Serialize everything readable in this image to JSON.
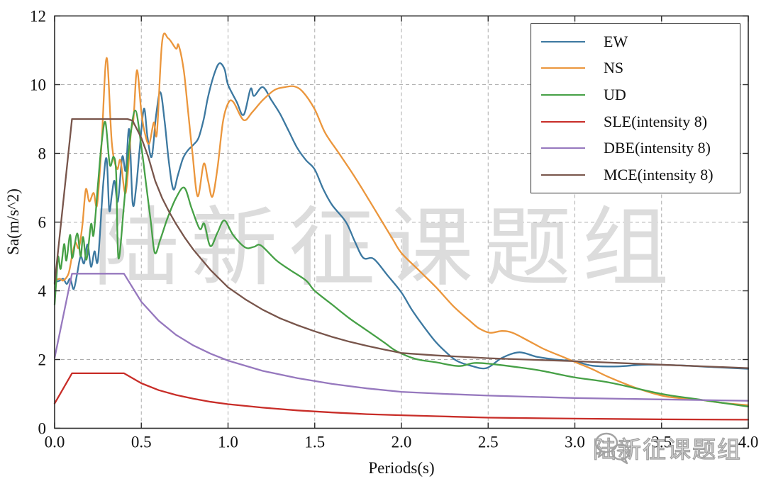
{
  "watermarks": {
    "center_text": "陆新征课题组",
    "bottom_right_text": "陆新征课题组"
  },
  "chart_data": {
    "type": "line",
    "title": "",
    "xlabel": "Periods(s)",
    "ylabel": "Sa(m/s^2)",
    "xlim": [
      0,
      4
    ],
    "ylim": [
      0,
      12
    ],
    "grid": "dashed",
    "legend_position": "upper right",
    "x_ticks": {
      "values": [
        0,
        0.5,
        1,
        1.5,
        2,
        2.5,
        3,
        3.5,
        4
      ],
      "labels": [
        "0.0",
        "0.5",
        "1.0",
        "1.5",
        "2.0",
        "2.5",
        "3.0",
        "3.5",
        "4.0"
      ]
    },
    "y_ticks": {
      "values": [
        0,
        2,
        4,
        6,
        8,
        10,
        12
      ],
      "labels": [
        "0",
        "2",
        "4",
        "6",
        "8",
        "10",
        "12"
      ]
    },
    "series": [
      {
        "name": "EW",
        "color": "#3c78a0",
        "smooth": true,
        "points": [
          [
            0,
            4.25
          ],
          [
            0.03,
            4.3
          ],
          [
            0.05,
            4.35
          ],
          [
            0.07,
            4.2
          ],
          [
            0.09,
            4.35
          ],
          [
            0.11,
            4.05
          ],
          [
            0.13,
            4.5
          ],
          [
            0.15,
            5.0
          ],
          [
            0.17,
            4.8
          ],
          [
            0.19,
            5.35
          ],
          [
            0.21,
            4.7
          ],
          [
            0.23,
            5.15
          ],
          [
            0.25,
            4.9
          ],
          [
            0.28,
            7.1
          ],
          [
            0.3,
            7.84
          ],
          [
            0.315,
            6.35
          ],
          [
            0.33,
            6.8
          ],
          [
            0.345,
            7.2
          ],
          [
            0.365,
            6.6
          ],
          [
            0.39,
            7.9
          ],
          [
            0.41,
            7.5
          ],
          [
            0.43,
            8.7
          ],
          [
            0.45,
            6.55
          ],
          [
            0.47,
            7.0
          ],
          [
            0.49,
            8.1
          ],
          [
            0.515,
            9.3
          ],
          [
            0.535,
            8.5
          ],
          [
            0.56,
            7.9
          ],
          [
            0.585,
            9.1
          ],
          [
            0.61,
            9.78
          ],
          [
            0.635,
            8.9
          ],
          [
            0.66,
            7.7
          ],
          [
            0.685,
            6.95
          ],
          [
            0.71,
            7.35
          ],
          [
            0.74,
            7.85
          ],
          [
            0.77,
            8.1
          ],
          [
            0.8,
            8.25
          ],
          [
            0.83,
            8.45
          ],
          [
            0.86,
            9.0
          ],
          [
            0.885,
            9.65
          ],
          [
            0.92,
            10.3
          ],
          [
            0.95,
            10.62
          ],
          [
            0.98,
            10.45
          ],
          [
            1.0,
            10.0
          ],
          [
            1.05,
            9.5
          ],
          [
            1.09,
            9.12
          ],
          [
            1.13,
            9.88
          ],
          [
            1.15,
            9.67
          ],
          [
            1.2,
            9.93
          ],
          [
            1.25,
            9.55
          ],
          [
            1.3,
            9.15
          ],
          [
            1.35,
            8.65
          ],
          [
            1.4,
            8.15
          ],
          [
            1.45,
            7.8
          ],
          [
            1.5,
            7.53
          ],
          [
            1.55,
            6.95
          ],
          [
            1.6,
            6.5
          ],
          [
            1.68,
            6.0
          ],
          [
            1.73,
            5.45
          ],
          [
            1.78,
            4.96
          ],
          [
            1.84,
            4.93
          ],
          [
            1.92,
            4.45
          ],
          [
            2.0,
            3.95
          ],
          [
            2.06,
            3.45
          ],
          [
            2.13,
            2.95
          ],
          [
            2.2,
            2.5
          ],
          [
            2.26,
            2.2
          ],
          [
            2.32,
            1.96
          ],
          [
            2.4,
            1.82
          ],
          [
            2.49,
            1.75
          ],
          [
            2.58,
            2.05
          ],
          [
            2.68,
            2.21
          ],
          [
            2.78,
            2.08
          ],
          [
            2.89,
            2.0
          ],
          [
            3.0,
            1.95
          ],
          [
            3.1,
            1.82
          ],
          [
            3.25,
            1.8
          ],
          [
            3.4,
            1.85
          ],
          [
            3.6,
            1.83
          ],
          [
            3.8,
            1.78
          ],
          [
            4.0,
            1.73
          ]
        ]
      },
      {
        "name": "NS",
        "color": "#eb963c",
        "smooth": true,
        "points": [
          [
            0,
            4.3
          ],
          [
            0.03,
            4.35
          ],
          [
            0.05,
            4.3
          ],
          [
            0.08,
            4.5
          ],
          [
            0.1,
            5.0
          ],
          [
            0.12,
            5.4
          ],
          [
            0.14,
            5.25
          ],
          [
            0.16,
            5.9
          ],
          [
            0.18,
            6.95
          ],
          [
            0.2,
            6.6
          ],
          [
            0.225,
            6.85
          ],
          [
            0.245,
            6.5
          ],
          [
            0.27,
            8.2
          ],
          [
            0.3,
            10.78
          ],
          [
            0.33,
            8.3
          ],
          [
            0.36,
            7.55
          ],
          [
            0.38,
            7.8
          ],
          [
            0.41,
            6.85
          ],
          [
            0.44,
            8.6
          ],
          [
            0.455,
            9.0
          ],
          [
            0.475,
            10.42
          ],
          [
            0.5,
            9.2
          ],
          [
            0.52,
            8.6
          ],
          [
            0.545,
            8.28
          ],
          [
            0.572,
            8.9
          ],
          [
            0.59,
            8.6
          ],
          [
            0.62,
            11.25
          ],
          [
            0.655,
            11.35
          ],
          [
            0.7,
            11.05
          ],
          [
            0.715,
            11.15
          ],
          [
            0.745,
            10.4
          ],
          [
            0.77,
            9.2
          ],
          [
            0.795,
            8.0
          ],
          [
            0.825,
            6.75
          ],
          [
            0.86,
            7.7
          ],
          [
            0.885,
            7.2
          ],
          [
            0.91,
            6.74
          ],
          [
            0.94,
            7.6
          ],
          [
            0.97,
            8.9
          ],
          [
            1.0,
            9.45
          ],
          [
            1.03,
            9.5
          ],
          [
            1.09,
            8.97
          ],
          [
            1.14,
            9.2
          ],
          [
            1.2,
            9.55
          ],
          [
            1.27,
            9.85
          ],
          [
            1.33,
            9.93
          ],
          [
            1.38,
            9.95
          ],
          [
            1.43,
            9.8
          ],
          [
            1.5,
            9.28
          ],
          [
            1.56,
            8.6
          ],
          [
            1.64,
            8.0
          ],
          [
            1.72,
            7.4
          ],
          [
            1.8,
            6.75
          ],
          [
            1.89,
            6.0
          ],
          [
            1.95,
            5.5
          ],
          [
            2.0,
            5.1
          ],
          [
            2.1,
            4.6
          ],
          [
            2.2,
            4.1
          ],
          [
            2.3,
            3.55
          ],
          [
            2.4,
            3.1
          ],
          [
            2.45,
            2.9
          ],
          [
            2.51,
            2.78
          ],
          [
            2.58,
            2.83
          ],
          [
            2.64,
            2.78
          ],
          [
            2.73,
            2.55
          ],
          [
            2.82,
            2.31
          ],
          [
            2.92,
            2.1
          ],
          [
            3.0,
            1.93
          ],
          [
            3.1,
            1.72
          ],
          [
            3.2,
            1.48
          ],
          [
            3.35,
            1.18
          ],
          [
            3.5,
            0.95
          ],
          [
            3.6,
            0.88
          ],
          [
            3.72,
            0.83
          ],
          [
            3.85,
            0.74
          ],
          [
            4.0,
            0.67
          ]
        ]
      },
      {
        "name": "UD",
        "color": "#46a046",
        "smooth": true,
        "points": [
          [
            0,
            3.6
          ],
          [
            0.01,
            4.3
          ],
          [
            0.02,
            5.0
          ],
          [
            0.035,
            4.64
          ],
          [
            0.055,
            5.36
          ],
          [
            0.068,
            4.88
          ],
          [
            0.089,
            5.63
          ],
          [
            0.102,
            4.95
          ],
          [
            0.13,
            5.67
          ],
          [
            0.15,
            5.0
          ],
          [
            0.164,
            5.57
          ],
          [
            0.184,
            4.91
          ],
          [
            0.21,
            5.94
          ],
          [
            0.225,
            5.63
          ],
          [
            0.25,
            7.1
          ],
          [
            0.27,
            8.25
          ],
          [
            0.293,
            8.91
          ],
          [
            0.318,
            7.67
          ],
          [
            0.34,
            7.9
          ],
          [
            0.355,
            7.4
          ],
          [
            0.368,
            4.95
          ],
          [
            0.4,
            6.5
          ],
          [
            0.43,
            8.2
          ],
          [
            0.465,
            9.25
          ],
          [
            0.5,
            8.2
          ],
          [
            0.53,
            7.0
          ],
          [
            0.555,
            6.0
          ],
          [
            0.578,
            5.1
          ],
          [
            0.61,
            5.5
          ],
          [
            0.65,
            6.1
          ],
          [
            0.7,
            6.7
          ],
          [
            0.748,
            7.0
          ],
          [
            0.79,
            6.4
          ],
          [
            0.837,
            5.8
          ],
          [
            0.863,
            5.95
          ],
          [
            0.898,
            5.3
          ],
          [
            0.94,
            5.7
          ],
          [
            0.979,
            6.05
          ],
          [
            1.03,
            5.62
          ],
          [
            1.1,
            5.26
          ],
          [
            1.15,
            5.28
          ],
          [
            1.19,
            5.32
          ],
          [
            1.28,
            4.88
          ],
          [
            1.36,
            4.6
          ],
          [
            1.45,
            4.3
          ],
          [
            1.5,
            4.0
          ],
          [
            1.6,
            3.6
          ],
          [
            1.7,
            3.2
          ],
          [
            1.8,
            2.85
          ],
          [
            1.9,
            2.5
          ],
          [
            1.97,
            2.25
          ],
          [
            2.08,
            2.02
          ],
          [
            2.2,
            1.92
          ],
          [
            2.33,
            1.81
          ],
          [
            2.42,
            1.9
          ],
          [
            2.52,
            1.87
          ],
          [
            2.65,
            1.79
          ],
          [
            2.8,
            1.68
          ],
          [
            3.0,
            1.48
          ],
          [
            3.2,
            1.33
          ],
          [
            3.5,
            1.0
          ],
          [
            3.7,
            0.85
          ],
          [
            4.0,
            0.63
          ]
        ]
      },
      {
        "name": "SLE(intensity 8)",
        "color": "#c82d28",
        "smooth": false,
        "points": [
          [
            0,
            0.72
          ],
          [
            0.1,
            1.6
          ],
          [
            0.4,
            1.6
          ],
          [
            0.5,
            1.31
          ],
          [
            0.6,
            1.11
          ],
          [
            0.7,
            0.97
          ],
          [
            0.8,
            0.86
          ],
          [
            0.9,
            0.77
          ],
          [
            1.0,
            0.7
          ],
          [
            1.2,
            0.6
          ],
          [
            1.4,
            0.52
          ],
          [
            1.6,
            0.46
          ],
          [
            1.8,
            0.41
          ],
          [
            2.0,
            0.38
          ],
          [
            2.2,
            0.35
          ],
          [
            2.5,
            0.31
          ],
          [
            3.0,
            0.28
          ],
          [
            3.5,
            0.26
          ],
          [
            4.0,
            0.25
          ]
        ]
      },
      {
        "name": "DBE(intensity 8)",
        "color": "#9678be",
        "smooth": false,
        "points": [
          [
            0,
            2.05
          ],
          [
            0.1,
            4.5
          ],
          [
            0.4,
            4.5
          ],
          [
            0.5,
            3.68
          ],
          [
            0.6,
            3.13
          ],
          [
            0.7,
            2.72
          ],
          [
            0.8,
            2.41
          ],
          [
            0.9,
            2.17
          ],
          [
            1.0,
            1.97
          ],
          [
            1.2,
            1.67
          ],
          [
            1.4,
            1.46
          ],
          [
            1.6,
            1.29
          ],
          [
            1.8,
            1.16
          ],
          [
            2.0,
            1.06
          ],
          [
            2.25,
            1.0
          ],
          [
            2.5,
            0.95
          ],
          [
            3.0,
            0.88
          ],
          [
            3.5,
            0.84
          ],
          [
            4.0,
            0.8
          ]
        ]
      },
      {
        "name": "MCE(intensity 8)",
        "color": "#78554b",
        "smooth": false,
        "points": [
          [
            0,
            4.2
          ],
          [
            0.1,
            9.0
          ],
          [
            0.42,
            9.0
          ],
          [
            0.45,
            8.95
          ],
          [
            0.5,
            8.45
          ],
          [
            0.54,
            7.9
          ],
          [
            0.58,
            7.2
          ],
          [
            0.62,
            6.7
          ],
          [
            0.66,
            6.3
          ],
          [
            0.7,
            5.95
          ],
          [
            0.75,
            5.55
          ],
          [
            0.8,
            5.2
          ],
          [
            0.85,
            4.9
          ],
          [
            0.9,
            4.6
          ],
          [
            1.0,
            4.1
          ],
          [
            1.1,
            3.75
          ],
          [
            1.2,
            3.45
          ],
          [
            1.3,
            3.2
          ],
          [
            1.4,
            3.0
          ],
          [
            1.5,
            2.82
          ],
          [
            1.6,
            2.66
          ],
          [
            1.7,
            2.52
          ],
          [
            1.8,
            2.4
          ],
          [
            1.9,
            2.29
          ],
          [
            2.0,
            2.19
          ],
          [
            2.2,
            2.12
          ],
          [
            2.5,
            2.04
          ],
          [
            3.0,
            1.95
          ],
          [
            3.5,
            1.85
          ],
          [
            4.0,
            1.75
          ]
        ]
      }
    ]
  }
}
